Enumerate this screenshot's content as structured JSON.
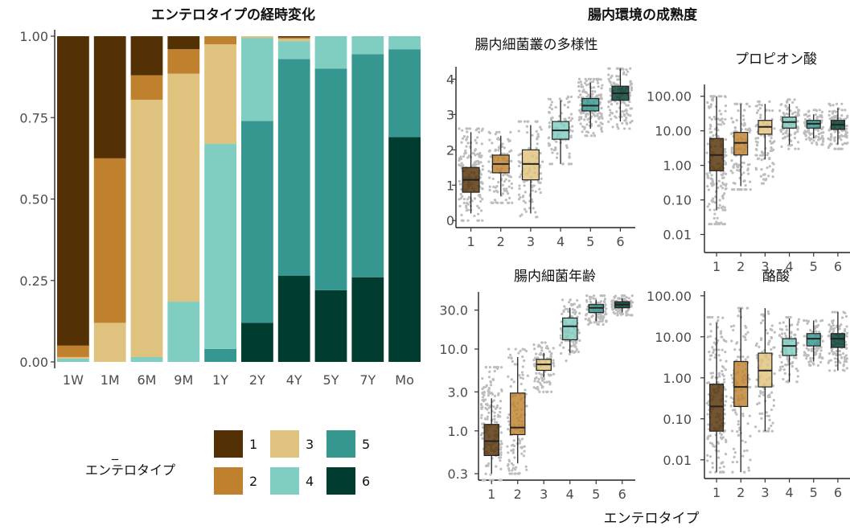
{
  "colors": {
    "1": "#543005",
    "2": "#bf812d",
    "3": "#dfc27d",
    "4": "#80cdc1",
    "5": "#35978f",
    "6": "#003c30",
    "jitter": "#bdbdbd"
  },
  "titles": {
    "left": "エンテロタイプの経時変化",
    "right": "腸内環境の成熟度",
    "diversity": "腸内細菌叢の多様性",
    "propionate": "プロピオン酸",
    "age": "腸内細菌年齢",
    "butyrate": "酪酸",
    "x_shared": "エンテロタイプ"
  },
  "legend": {
    "dash": "_",
    "title": "エンテロタイプ",
    "items": [
      {
        "key": "1",
        "label": "1"
      },
      {
        "key": "3",
        "label": "3"
      },
      {
        "key": "5",
        "label": "5"
      },
      {
        "key": "2",
        "label": "2"
      },
      {
        "key": "4",
        "label": "4"
      },
      {
        "key": "6",
        "label": "6"
      }
    ]
  },
  "chart_data": [
    {
      "type": "bar",
      "stacked": true,
      "title": "エンテロタイプの経時変化",
      "categories": [
        "1W",
        "1M",
        "6M",
        "9M",
        "1Y",
        "2Y",
        "4Y",
        "5Y",
        "7Y",
        "Mo"
      ],
      "ylim": [
        0,
        1
      ],
      "yticks": [
        "0.00",
        "0.25",
        "0.50",
        "0.75",
        "1.00"
      ],
      "series": [
        {
          "name": "6",
          "values": [
            0,
            0,
            0,
            0,
            0,
            0.12,
            0.265,
            0.22,
            0.26,
            0.69
          ]
        },
        {
          "name": "5",
          "values": [
            0,
            0,
            0,
            0,
            0.04,
            0.62,
            0.665,
            0.68,
            0.685,
            0.27
          ]
        },
        {
          "name": "4",
          "values": [
            0.01,
            0,
            0.015,
            0.185,
            0.63,
            0.255,
            0.055,
            0.1,
            0.055,
            0.04
          ]
        },
        {
          "name": "3",
          "values": [
            0.005,
            0.12,
            0.79,
            0.7,
            0.305,
            0.005,
            0.007,
            0,
            0,
            0
          ]
        },
        {
          "name": "2",
          "values": [
            0.035,
            0.505,
            0.075,
            0.075,
            0.025,
            0,
            0.004,
            0,
            0,
            0
          ]
        },
        {
          "name": "1",
          "values": [
            0.95,
            0.375,
            0.12,
            0.04,
            0,
            0,
            0.004,
            0,
            0,
            0
          ]
        }
      ]
    },
    {
      "type": "box",
      "title": "腸内細菌叢の多様性",
      "scale": "linear",
      "categories": [
        "1",
        "2",
        "3",
        "4",
        "5",
        "6"
      ],
      "yticks": [
        0,
        1,
        2,
        3,
        4
      ],
      "ytick_labels": [
        "0",
        "1",
        "2",
        "3",
        "4"
      ],
      "ylim": [
        -0.2,
        4.35
      ],
      "boxes": [
        {
          "min": 0.2,
          "q1": 0.8,
          "median": 1.15,
          "q3": 1.5,
          "max": 2.5
        },
        {
          "min": 0.7,
          "q1": 1.35,
          "median": 1.6,
          "q3": 1.85,
          "max": 2.4
        },
        {
          "min": 0.2,
          "q1": 1.15,
          "median": 1.6,
          "q3": 2.0,
          "max": 2.7
        },
        {
          "min": 1.6,
          "q1": 2.3,
          "median": 2.55,
          "q3": 2.8,
          "max": 3.4
        },
        {
          "min": 2.6,
          "q1": 3.1,
          "median": 3.25,
          "q3": 3.45,
          "max": 3.9
        },
        {
          "min": 2.8,
          "q1": 3.4,
          "median": 3.6,
          "q3": 3.8,
          "max": 4.3
        }
      ],
      "jitter": [
        {
          "lo": 0.0,
          "hi": 2.6,
          "n": 170
        },
        {
          "lo": 0.5,
          "hi": 2.5,
          "n": 110
        },
        {
          "lo": 0.1,
          "hi": 2.8,
          "n": 100
        },
        {
          "lo": 1.6,
          "hi": 3.5,
          "n": 90
        },
        {
          "lo": 2.4,
          "hi": 4.0,
          "n": 160
        },
        {
          "lo": 2.6,
          "hi": 4.3,
          "n": 130
        }
      ]
    },
    {
      "type": "box",
      "title": "プロピオン酸",
      "scale": "log10",
      "categories": [
        "1",
        "2",
        "3",
        "4",
        "5",
        "6"
      ],
      "yticks": [
        0.01,
        0.1,
        1,
        10,
        100
      ],
      "ytick_labels": [
        "0.01",
        "0.10",
        "1.00",
        "10.00",
        "100.00"
      ],
      "ylim": [
        0.003,
        220
      ],
      "boxes": [
        {
          "min": 0.05,
          "q1": 0.7,
          "median": 2.0,
          "q3": 6.0,
          "max": 100
        },
        {
          "min": 0.25,
          "q1": 2.0,
          "median": 4.5,
          "q3": 9.0,
          "max": 60
        },
        {
          "min": 1.5,
          "q1": 8.0,
          "median": 13,
          "q3": 20,
          "max": 60
        },
        {
          "min": 4.0,
          "q1": 12,
          "median": 18,
          "q3": 25,
          "max": 60
        },
        {
          "min": 6.0,
          "q1": 12,
          "median": 16,
          "q3": 20,
          "max": 30
        },
        {
          "min": 4.0,
          "q1": 11,
          "median": 15,
          "q3": 20,
          "max": 45
        }
      ],
      "jitter": [
        {
          "lo": 0.02,
          "hi": 100,
          "n": 170
        },
        {
          "lo": 0.2,
          "hi": 60,
          "n": 110
        },
        {
          "lo": 0.3,
          "hi": 70,
          "n": 90
        },
        {
          "lo": 3,
          "hi": 80,
          "n": 90
        },
        {
          "lo": 4,
          "hi": 40,
          "n": 100
        },
        {
          "lo": 3,
          "hi": 60,
          "n": 110
        }
      ]
    },
    {
      "type": "box",
      "title": "腸内細菌年齢",
      "scale": "log10",
      "categories": [
        "1",
        "2",
        "3",
        "4",
        "5",
        "6"
      ],
      "yticks": [
        0.3,
        1,
        3,
        10,
        30
      ],
      "ytick_labels": [
        "0.3",
        "1.0",
        "3.0",
        "10.0",
        "30.0"
      ],
      "ylim": [
        0.25,
        50
      ],
      "boxes": [
        {
          "min": 0.3,
          "q1": 0.5,
          "median": 0.75,
          "q3": 1.2,
          "max": 2.5
        },
        {
          "min": 0.4,
          "q1": 0.9,
          "median": 1.1,
          "q3": 2.9,
          "max": 8.0
        },
        {
          "min": 4.5,
          "q1": 5.5,
          "median": 6.5,
          "q3": 7.5,
          "max": 9.0
        },
        {
          "min": 9.0,
          "q1": 13,
          "median": 19,
          "q3": 24,
          "max": 32
        },
        {
          "min": 22,
          "q1": 28,
          "median": 32,
          "q3": 35,
          "max": 40
        },
        {
          "min": 28,
          "q1": 32,
          "median": 35,
          "q3": 38,
          "max": 42
        }
      ],
      "jitter": [
        {
          "lo": 0.25,
          "hi": 6,
          "n": 170
        },
        {
          "lo": 0.3,
          "hi": 10,
          "n": 120
        },
        {
          "lo": 3,
          "hi": 12,
          "n": 90
        },
        {
          "lo": 7,
          "hi": 40,
          "n": 110
        },
        {
          "lo": 20,
          "hi": 45,
          "n": 110
        },
        {
          "lo": 26,
          "hi": 45,
          "n": 100
        }
      ]
    },
    {
      "type": "box",
      "title": "酪酸",
      "scale": "log10",
      "categories": [
        "1",
        "2",
        "3",
        "4",
        "5",
        "6"
      ],
      "yticks": [
        0.01,
        0.1,
        1,
        10,
        100
      ],
      "ytick_labels": [
        "0.01",
        "0.10",
        "1.00",
        "10.00",
        "100.00"
      ],
      "ylim": [
        0.0035,
        130
      ],
      "boxes": [
        {
          "min": 0.005,
          "q1": 0.05,
          "median": 0.2,
          "q3": 0.7,
          "max": 22
        },
        {
          "min": 0.005,
          "q1": 0.2,
          "median": 0.6,
          "q3": 2.5,
          "max": 50
        },
        {
          "min": 0.05,
          "q1": 0.6,
          "median": 1.5,
          "q3": 4.0,
          "max": 50
        },
        {
          "min": 0.8,
          "q1": 3.5,
          "median": 6.0,
          "q3": 9.0,
          "max": 28
        },
        {
          "min": 2.5,
          "q1": 6.0,
          "median": 9.0,
          "q3": 12,
          "max": 25
        },
        {
          "min": 1.5,
          "q1": 5.5,
          "median": 9.0,
          "q3": 12,
          "max": 40
        }
      ],
      "jitter": [
        {
          "lo": 0.005,
          "hi": 30,
          "n": 170
        },
        {
          "lo": 0.005,
          "hi": 50,
          "n": 120
        },
        {
          "lo": 0.05,
          "hi": 50,
          "n": 100
        },
        {
          "lo": 0.8,
          "hi": 30,
          "n": 90
        },
        {
          "lo": 2,
          "hi": 25,
          "n": 90
        },
        {
          "lo": 1.5,
          "hi": 40,
          "n": 110
        }
      ]
    }
  ]
}
